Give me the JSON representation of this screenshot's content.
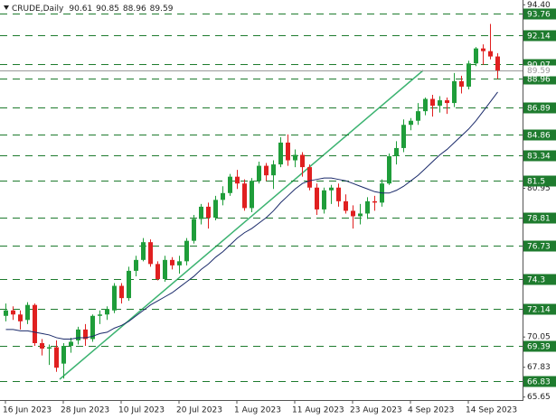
{
  "chart_data": {
    "type": "candlestick",
    "title": "CRUDE,Daily",
    "categories": [
      "16 Jun 2023",
      null,
      null,
      null,
      null,
      null,
      null,
      null,
      "28 Jun 2023",
      null,
      null,
      null,
      null,
      null,
      null,
      null,
      "10 Jul 2023",
      null,
      null,
      null,
      null,
      null,
      null,
      null,
      "20 Jul 2023",
      null,
      null,
      null,
      null,
      null,
      null,
      null,
      "1 Aug 2023",
      null,
      null,
      null,
      null,
      null,
      null,
      null,
      "11 Aug 2023",
      null,
      null,
      null,
      null,
      null,
      null,
      null,
      "23 Aug 2023",
      null,
      null,
      null,
      null,
      null,
      null,
      null,
      "4 Sep 2023",
      null,
      null,
      null,
      null,
      null,
      null,
      null,
      "14 Sep 2023",
      null,
      null,
      null,
      null
    ],
    "open": [
      71.6,
      72.0,
      71.7,
      71.3,
      72.4,
      69.6,
      69.2,
      69.3,
      68.1,
      69.4,
      69.8,
      70.6,
      69.9,
      71.6,
      71.7,
      72.0,
      73.8,
      72.9,
      74.9,
      75.7,
      77.0,
      75.4,
      74.3,
      75.7,
      75.3,
      75.6,
      77.1,
      78.7,
      79.6,
      78.8,
      80.1,
      80.6,
      81.8,
      81.3,
      79.5,
      81.5,
      82.6,
      81.9,
      82.7,
      84.3,
      83.0,
      83.4,
      82.5,
      81.0,
      79.4,
      80.8,
      81.0,
      80.0,
      79.3,
      78.9,
      79.1,
      80.0,
      79.9,
      81.3,
      83.3,
      83.9,
      85.6,
      85.9,
      86.6,
      87.5,
      87.0,
      87.4,
      87.2,
      88.8,
      88.4,
      90.1,
      91.2,
      91.0,
      90.61
    ],
    "high": [
      72.5,
      72.3,
      72.0,
      72.6,
      72.5,
      69.9,
      69.5,
      69.8,
      69.6,
      70.0,
      70.8,
      71.0,
      71.7,
      72.0,
      72.3,
      74.0,
      74.0,
      75.2,
      76.0,
      77.3,
      77.2,
      75.6,
      76.0,
      75.9,
      76.0,
      77.3,
      79.0,
      79.8,
      79.9,
      80.4,
      81.1,
      82.0,
      82.3,
      81.6,
      81.7,
      82.9,
      82.8,
      83.0,
      84.7,
      84.9,
      83.8,
      83.6,
      82.7,
      81.3,
      81.0,
      81.2,
      81.3,
      80.5,
      79.7,
      79.8,
      80.3,
      80.4,
      81.6,
      83.5,
      84.4,
      86.0,
      86.1,
      87.2,
      87.6,
      87.8,
      87.7,
      87.6,
      89.4,
      89.2,
      90.3,
      91.3,
      91.5,
      93.0,
      90.85
    ],
    "low": [
      71.2,
      71.3,
      70.6,
      71.0,
      69.4,
      68.7,
      68.0,
      67.5,
      67.0,
      68.9,
      69.5,
      69.4,
      69.7,
      71.0,
      71.3,
      71.8,
      72.5,
      72.7,
      74.5,
      75.6,
      75.2,
      74.2,
      74.1,
      75.0,
      74.7,
      75.3,
      76.9,
      78.3,
      78.0,
      78.6,
      79.7,
      80.4,
      80.9,
      79.3,
      79.2,
      81.3,
      81.5,
      80.9,
      82.5,
      82.6,
      82.5,
      81.8,
      80.8,
      79.0,
      79.1,
      79.8,
      79.6,
      79.1,
      78.0,
      78.3,
      78.7,
      79.3,
      79.6,
      81.2,
      82.7,
      83.6,
      85.2,
      85.6,
      86.3,
      86.2,
      86.5,
      86.4,
      86.9,
      87.9,
      88.2,
      89.9,
      90.0,
      90.4,
      88.96
    ],
    "close": [
      72.0,
      71.7,
      71.2,
      72.4,
      69.6,
      69.2,
      69.3,
      67.8,
      69.4,
      69.7,
      70.6,
      69.9,
      71.6,
      71.7,
      72.1,
      73.8,
      72.9,
      74.9,
      75.7,
      77.0,
      75.4,
      74.3,
      75.7,
      75.3,
      75.6,
      77.1,
      78.7,
      79.6,
      78.8,
      80.1,
      80.6,
      81.8,
      81.3,
      79.5,
      81.5,
      82.6,
      81.9,
      82.7,
      84.3,
      83.0,
      83.4,
      82.5,
      81.0,
      79.4,
      80.8,
      81.0,
      80.0,
      79.3,
      78.9,
      79.1,
      80.0,
      79.9,
      81.3,
      83.3,
      83.9,
      85.6,
      85.9,
      86.6,
      87.5,
      87.0,
      87.4,
      87.2,
      88.8,
      88.4,
      90.1,
      91.2,
      91.0,
      90.61,
      89.59
    ],
    "ma": [
      70.6,
      70.6,
      70.5,
      70.5,
      70.4,
      70.3,
      70.2,
      70.0,
      69.9,
      69.9,
      70.0,
      70.0,
      70.1,
      70.3,
      70.4,
      70.7,
      70.9,
      71.2,
      71.6,
      72.0,
      72.4,
      72.7,
      73.0,
      73.3,
      73.7,
      74.1,
      74.5,
      75.0,
      75.4,
      75.9,
      76.3,
      76.8,
      77.3,
      77.7,
      78.0,
      78.4,
      78.8,
      79.3,
      79.9,
      80.4,
      80.9,
      81.3,
      81.5,
      81.6,
      81.7,
      81.7,
      81.6,
      81.5,
      81.3,
      81.1,
      80.9,
      80.7,
      80.6,
      80.6,
      80.8,
      81.1,
      81.5,
      81.9,
      82.4,
      82.9,
      83.4,
      83.8,
      84.3,
      84.8,
      85.3,
      85.9,
      86.6,
      87.3,
      88.0
    ],
    "up_color": "#1f9d3a",
    "down_color": "#e02020",
    "ma_color": "#1a2a6a",
    "level_color": "#1e7b2e",
    "levels": [
      93.76,
      92.14,
      90.07,
      88.96,
      86.89,
      84.86,
      83.34,
      81.5,
      78.81,
      76.73,
      74.3,
      72.14,
      69.39,
      66.83
    ],
    "ylim": [
      65.43,
      94.75
    ],
    "yticks": [
      {
        "value": 94.4,
        "label": "94.40"
      },
      {
        "value": 80.95,
        "label": "80.95"
      },
      {
        "value": 70.05,
        "label": "70.05"
      },
      67.83,
      65.65
    ]
  }
}
